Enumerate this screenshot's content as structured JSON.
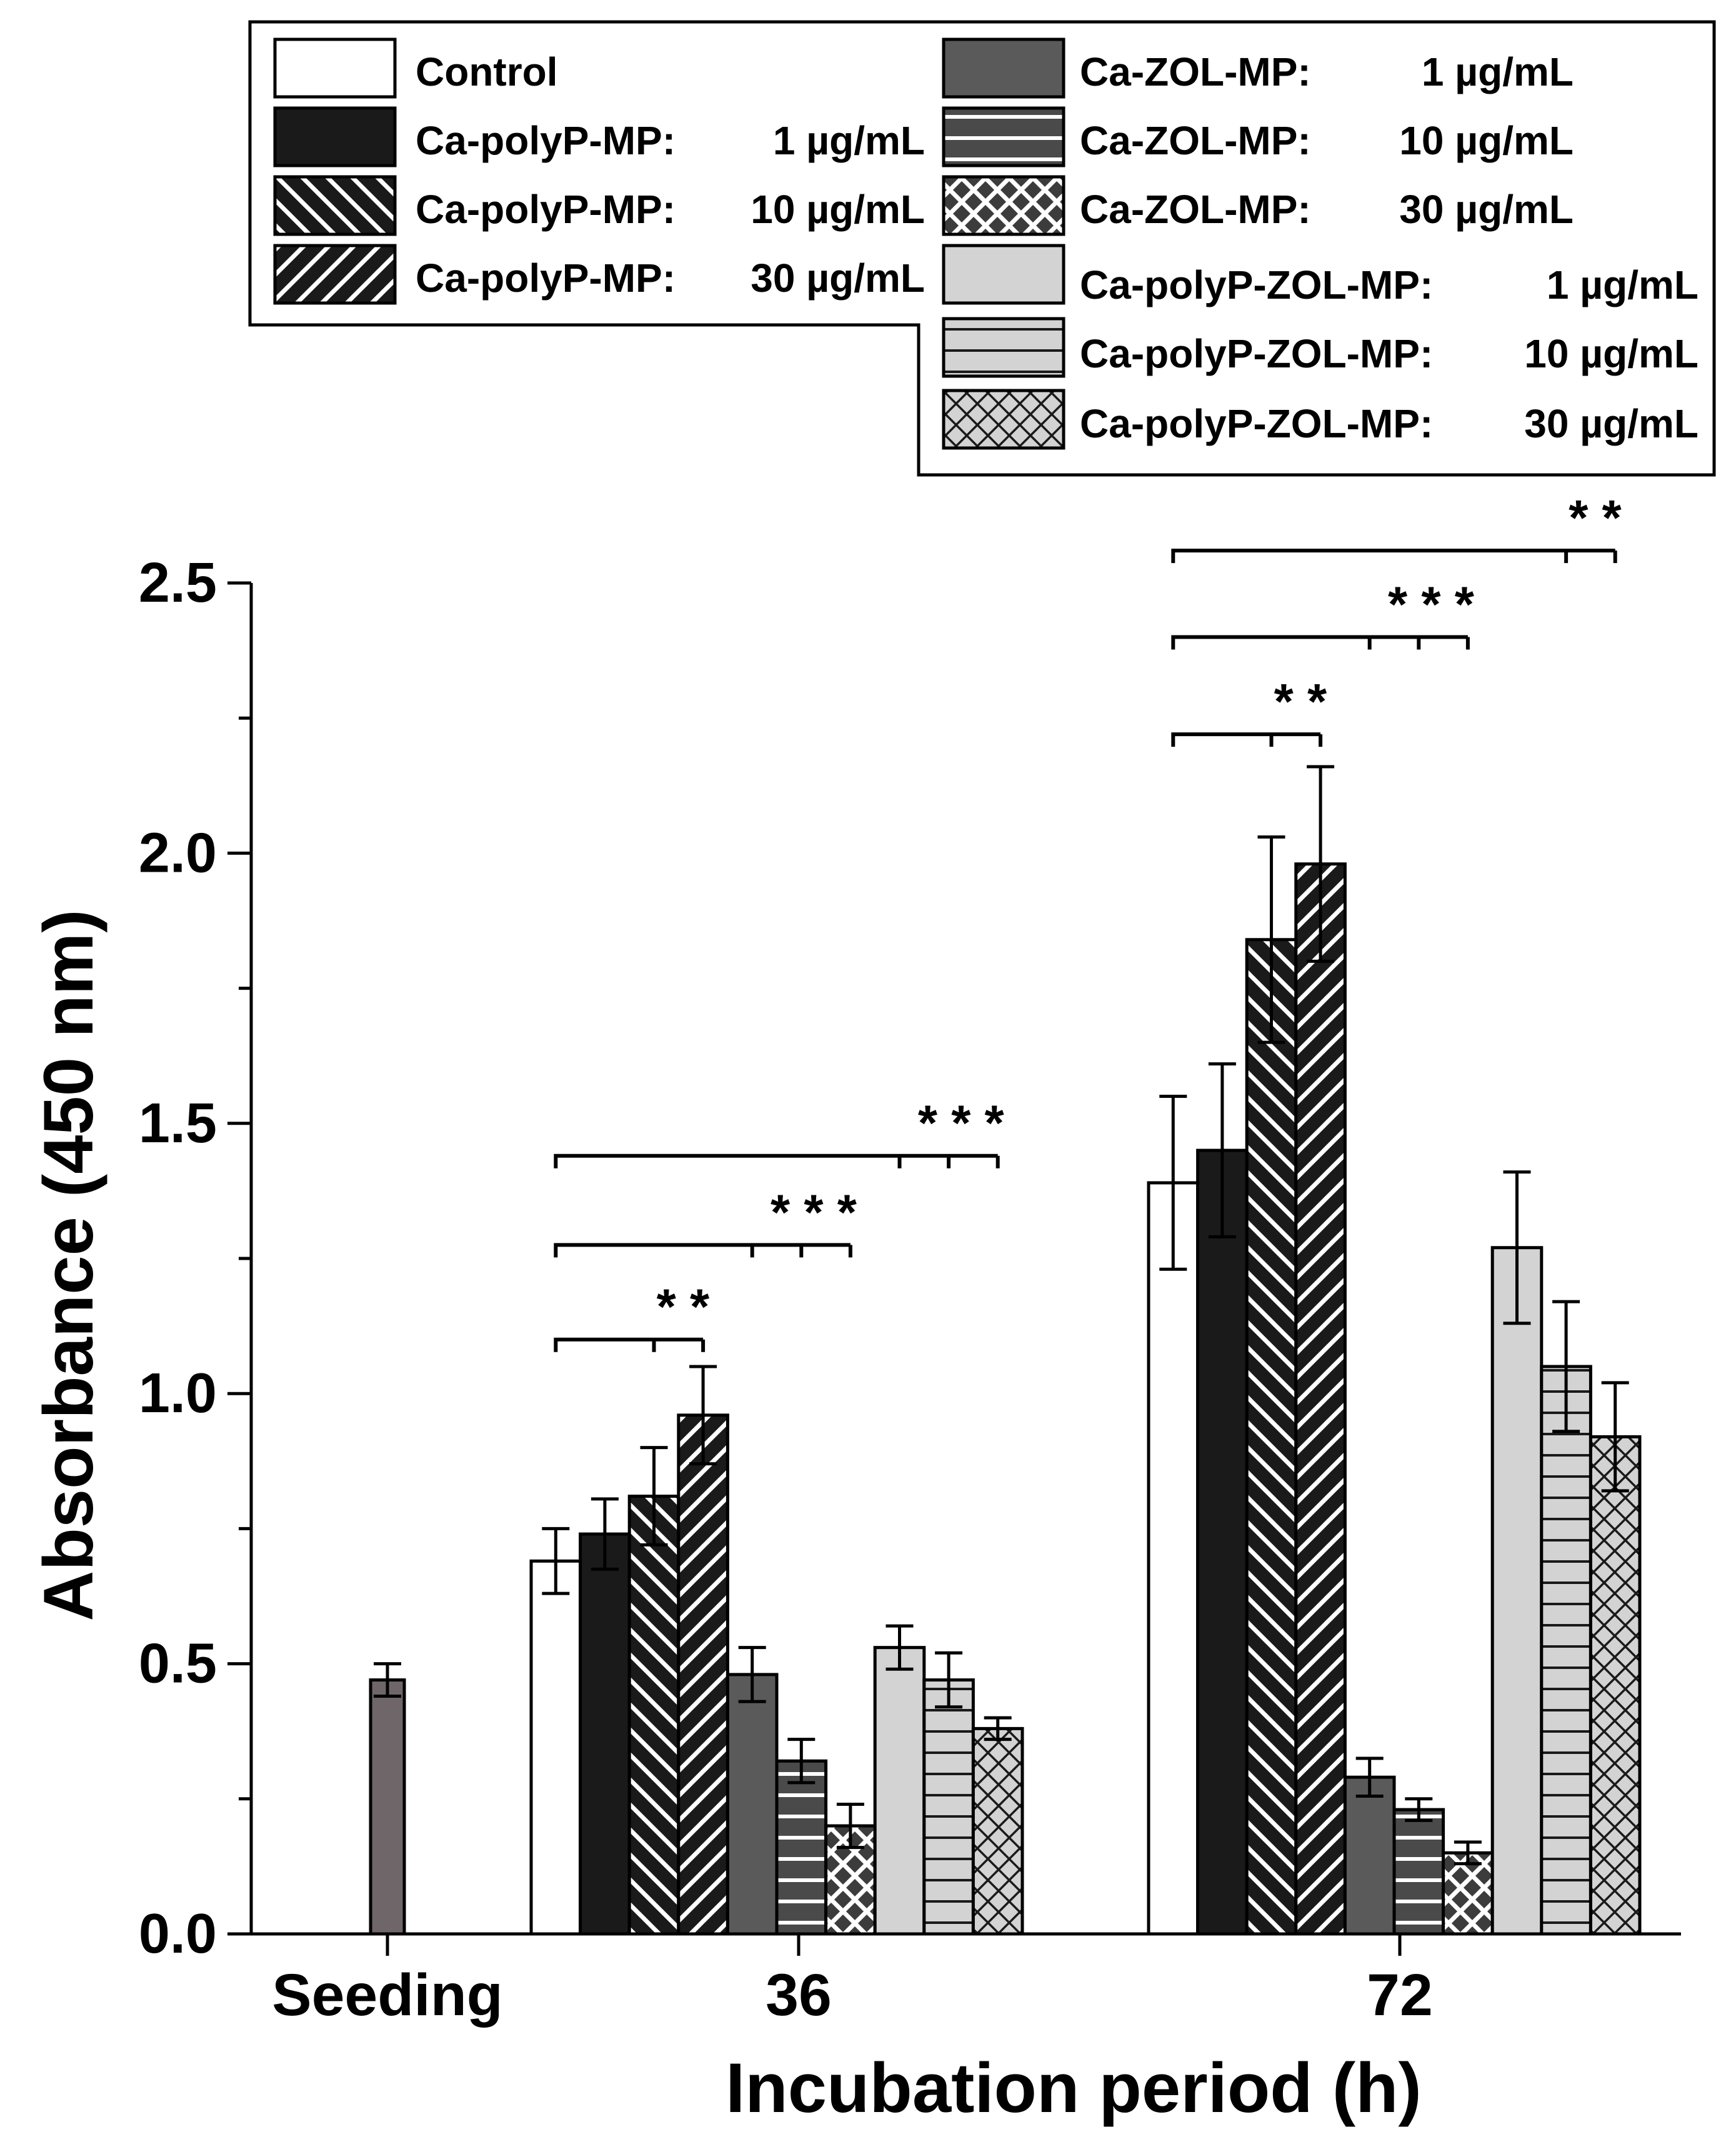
{
  "chart_data": {
    "type": "bar",
    "xlabel": "Incubation period (h)",
    "ylabel": "Absorbance (450 nm)",
    "ylim": [
      0,
      2.5
    ],
    "yticks": [
      "0.0",
      "0.5",
      "1.0",
      "1.5",
      "2.0",
      "2.5"
    ],
    "ytick_values": [
      0,
      0.5,
      1.0,
      1.5,
      2.0,
      2.5
    ],
    "grid": false,
    "legend_position": "top",
    "categories": [
      "Seeding",
      "36",
      "72"
    ],
    "seeding": {
      "value": 0.47,
      "error": 0.03,
      "color": "#6e6669"
    },
    "series": [
      {
        "name": "Control",
        "label_name": "Control",
        "label_dose": "",
        "pattern": "white",
        "values": [
          null,
          0.69,
          1.39
        ],
        "errors": [
          null,
          0.06,
          0.16
        ]
      },
      {
        "name": "Ca-polyP-MP: 1 µg/mL",
        "label_name": "Ca-polyP-MP:",
        "label_dose": "1 µg/mL",
        "pattern": "black",
        "values": [
          null,
          0.74,
          1.45
        ],
        "errors": [
          null,
          0.065,
          0.16
        ]
      },
      {
        "name": "Ca-polyP-MP: 10 µg/mL",
        "label_name": "Ca-polyP-MP:",
        "label_dose": "10 µg/mL",
        "pattern": "back-diagonal",
        "values": [
          null,
          0.81,
          1.84
        ],
        "errors": [
          null,
          0.09,
          0.19
        ]
      },
      {
        "name": "Ca-polyP-MP: 30 µg/mL",
        "label_name": "Ca-polyP-MP:",
        "label_dose": "30 µg/mL",
        "pattern": "forward-diagonal",
        "values": [
          null,
          0.96,
          1.98
        ],
        "errors": [
          null,
          0.09,
          0.18
        ]
      },
      {
        "name": "Ca-ZOL-MP: 1 µg/mL",
        "label_name": "Ca-ZOL-MP:",
        "label_dose": "1 µg/mL",
        "pattern": "dark-gray",
        "values": [
          null,
          0.48,
          0.29
        ],
        "errors": [
          null,
          0.05,
          0.035
        ]
      },
      {
        "name": "Ca-ZOL-MP: 10 µg/mL",
        "label_name": "Ca-ZOL-MP:",
        "label_dose": "10 µg/mL",
        "pattern": "dark-horizontal",
        "values": [
          null,
          0.32,
          0.23
        ],
        "errors": [
          null,
          0.04,
          0.02
        ]
      },
      {
        "name": "Ca-ZOL-MP: 30 µg/mL",
        "label_name": "Ca-ZOL-MP:",
        "label_dose": "30 µg/mL",
        "pattern": "dark-crosshatch",
        "values": [
          null,
          0.2,
          0.15
        ],
        "errors": [
          null,
          0.04,
          0.02
        ]
      },
      {
        "name": "Ca-polyP-ZOL-MP: 1 µg/mL",
        "label_name": "Ca-polyP-ZOL-MP:",
        "label_dose": "1 µg/mL",
        "pattern": "light-gray",
        "values": [
          null,
          0.53,
          1.27
        ],
        "errors": [
          null,
          0.04,
          0.14
        ]
      },
      {
        "name": "Ca-polyP-ZOL-MP: 10 µg/mL",
        "label_name": "Ca-polyP-ZOL-MP:",
        "label_dose": "10 µg/mL",
        "pattern": "light-horizontal",
        "values": [
          null,
          0.47,
          1.05
        ],
        "errors": [
          null,
          0.05,
          0.12
        ]
      },
      {
        "name": "Ca-polyP-ZOL-MP: 30 µg/mL",
        "label_name": "Ca-polyP-ZOL-MP:",
        "label_dose": "30 µg/mL",
        "pattern": "light-crosshatch",
        "values": [
          null,
          0.38,
          0.92
        ],
        "errors": [
          null,
          0.02,
          0.1
        ]
      }
    ],
    "colors": {
      "axis": "#000000",
      "dark_fill": "#5a5a5a",
      "light_fill": "#d3d3d3",
      "black_fill": "#1a1a1a"
    },
    "significance": [
      {
        "category": "36",
        "from_series": 0,
        "to_series": 3,
        "ticks_at_series": [
          2,
          3
        ],
        "y": 1.1,
        "label": "* *"
      },
      {
        "category": "36",
        "from_series": 0,
        "to_series": 6,
        "ticks_at_series": [
          4,
          5,
          6
        ],
        "y": 1.275,
        "label": "* * *"
      },
      {
        "category": "36",
        "from_series": 0,
        "to_series": 9,
        "ticks_at_series": [
          7,
          8,
          9
        ],
        "y": 1.44,
        "label": "* * *"
      },
      {
        "category": "72",
        "from_series": 0,
        "to_series": 3,
        "ticks_at_series": [
          2,
          3
        ],
        "y": 2.22,
        "label": "* *"
      },
      {
        "category": "72",
        "from_series": 0,
        "to_series": 6,
        "ticks_at_series": [
          4,
          5,
          6
        ],
        "y": 2.4,
        "label": "* * *"
      },
      {
        "category": "72",
        "from_series": 0,
        "to_series": 9,
        "ticks_at_series": [
          8,
          9
        ],
        "y": 2.56,
        "label": "* *"
      }
    ]
  }
}
